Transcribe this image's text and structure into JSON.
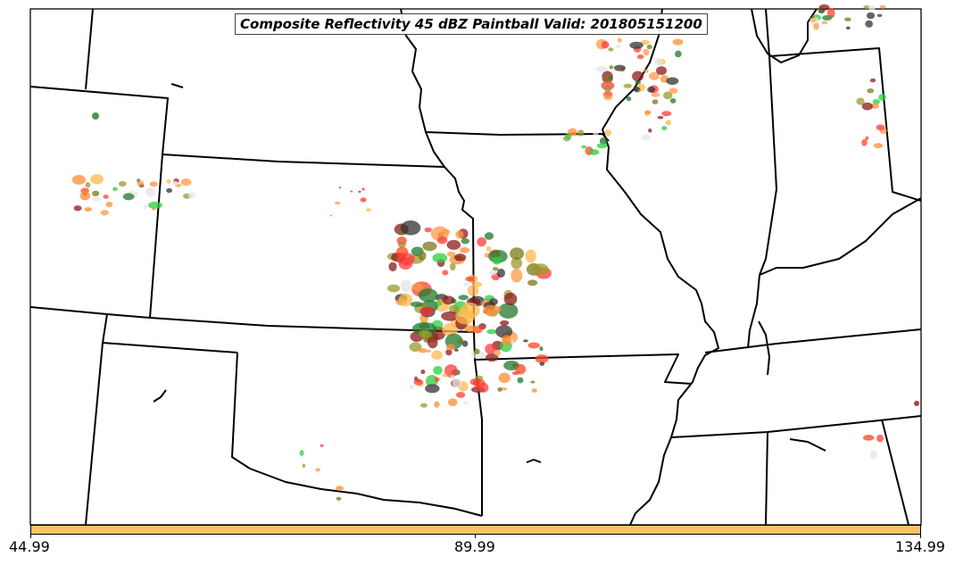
{
  "title": "Composite Reflectivity 45 dBZ Paintball Valid: 201805151200",
  "colorbar": {
    "color": "#ffc266",
    "ticks": [
      "44.99",
      "89.99",
      "134.99"
    ]
  },
  "member_colors": [
    "#1f7a2e",
    "#8b1a1a",
    "#ff8c33",
    "#e6e6e6",
    "#ff9a4a",
    "#2ecc40",
    "#ff3b3b",
    "#7a7a1a",
    "#ffb84d",
    "#333333",
    "#ff4422",
    "#9a9a2a"
  ]
}
